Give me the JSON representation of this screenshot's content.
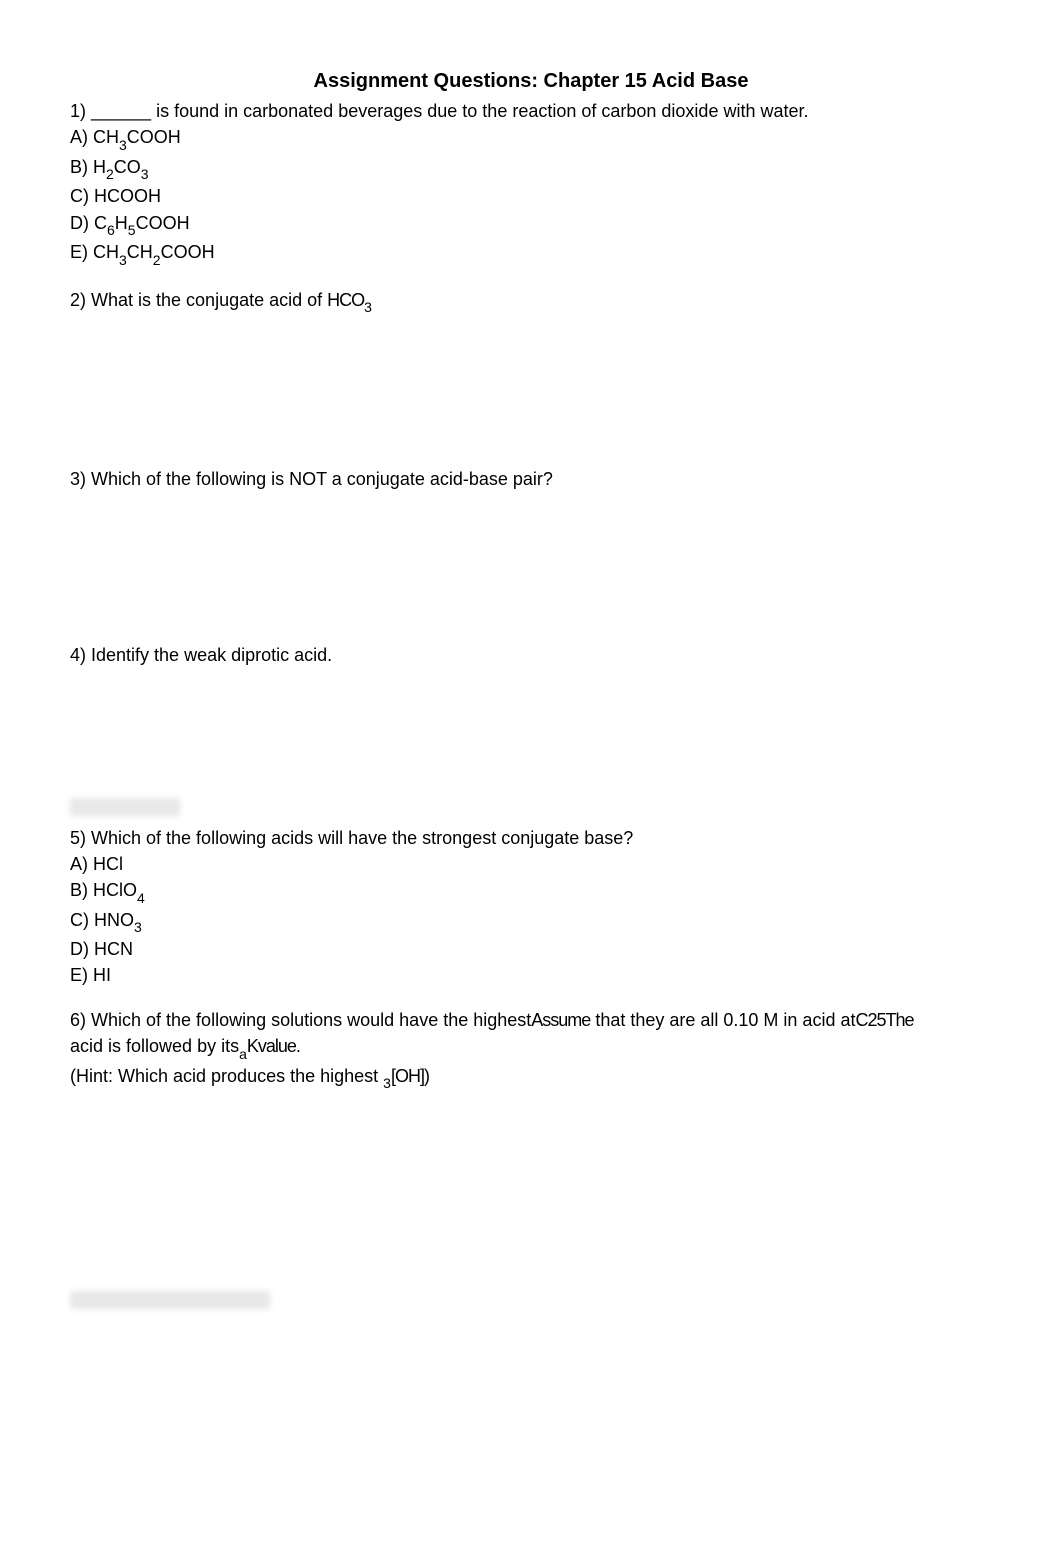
{
  "document": {
    "title": "Assignment Questions: Chapter 15 Acid Base",
    "background_color": "#ffffff",
    "text_color": "#000000",
    "title_fontsize": 20,
    "body_fontsize": 18,
    "subscript_fontsize": 14,
    "font_family": "Arial"
  },
  "q1": {
    "text_prefix": "1) ______ is found in carbonated beverages due to the reaction of carbon dioxide with water.",
    "options": {
      "A": {
        "prefix": "A) CH",
        "sub1": "3",
        "suffix": "COOH"
      },
      "B": {
        "prefix": "B) H",
        "sub1": "2",
        "mid": "CO",
        "sub2": "3"
      },
      "C": {
        "text": "C) HCOOH"
      },
      "D": {
        "prefix": "D) C",
        "sub1": "6",
        "mid": "H",
        "sub2": "5",
        "suffix": "COOH"
      },
      "E": {
        "prefix": "E) CH",
        "sub1": "3",
        "mid": "CH",
        "sub2": "2",
        "suffix": "COOH"
      }
    }
  },
  "q2": {
    "text": "2) What is the conjugate acid of HCO?",
    "text_prefix": "2) What is the conjugate acid of ",
    "garbled": "HCO",
    "sub": "3"
  },
  "q3": {
    "text": "3) Which of the following is NOT a conjugate acid-base pair?"
  },
  "q4": {
    "text": "4) Identify the weak diprotic acid."
  },
  "q5": {
    "text": "5) Which of the following acids will have the strongest conjugate base?",
    "options": {
      "A": {
        "text": "A) HCl"
      },
      "B": {
        "prefix": "B) HClO",
        "sub1": "4"
      },
      "C": {
        "prefix": "C) HNO",
        "sub1": "3"
      },
      "D": {
        "text": "D) HCN"
      },
      "E": {
        "text": "E) HI"
      }
    }
  },
  "q6": {
    "line1_part1": "6) Which of the following solutions would have the highest",
    "line1_garble1": "Assume",
    "line1_part2": " that they are all 0.10 M in acid at",
    "line1_garble2": "C25The",
    "line2_part1": "acid is followed by its",
    "line2_garble": "Kvalue.",
    "line2_sub": "a",
    "line3_part1": "(Hint: Which acid produces the highest ",
    "line3_garble": "[OH])",
    "line3_sub": "3"
  }
}
